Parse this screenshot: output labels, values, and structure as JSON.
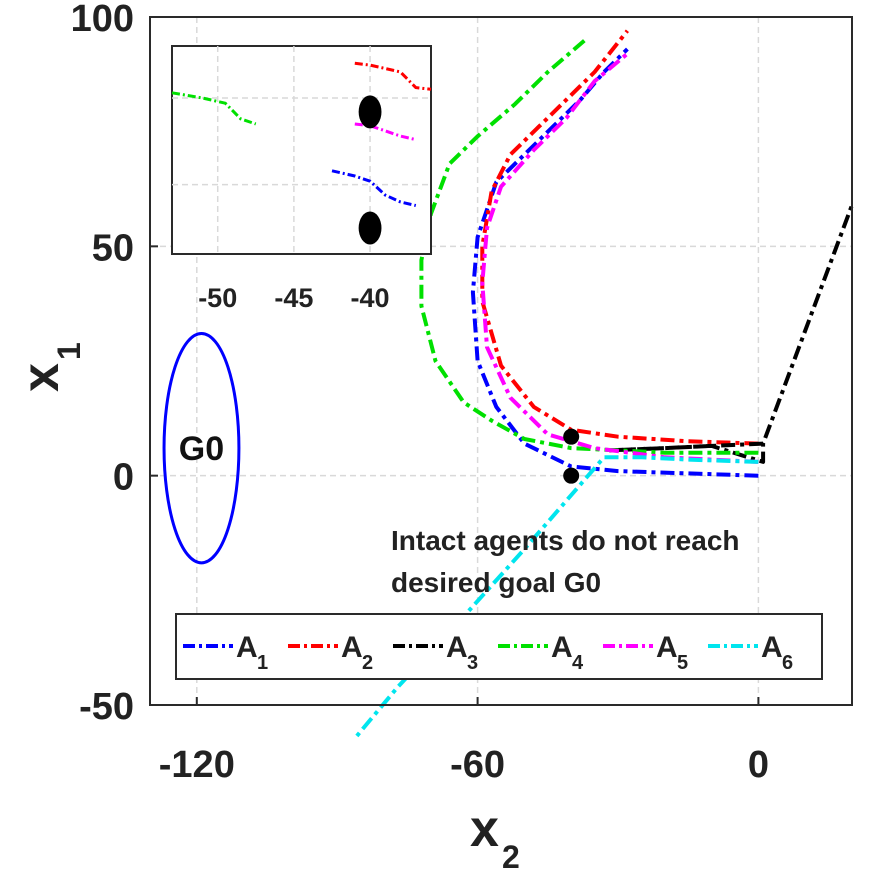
{
  "chart_data": {
    "type": "line",
    "title": "",
    "xlabel": "x",
    "xlabel_sub": "2",
    "ylabel": "x",
    "ylabel_sub": "1",
    "xlim": [
      -130,
      20
    ],
    "ylim": [
      -50,
      100
    ],
    "xticks": [
      -120,
      -60,
      0
    ],
    "yticks": [
      -50,
      0,
      50,
      100
    ],
    "xtick_labels": [
      "-120",
      "-60",
      "0"
    ],
    "ytick_labels": [
      "-50",
      "0",
      "50",
      "100"
    ],
    "grid": true,
    "legend_position": "bottom",
    "series": [
      {
        "name": "A",
        "sub": "1",
        "color": "#0000ff",
        "points": [
          [
            0,
            0
          ],
          [
            -15,
            0.5
          ],
          [
            -30,
            1
          ],
          [
            -40,
            2
          ],
          [
            -50,
            7
          ],
          [
            -56,
            15
          ],
          [
            -60,
            25
          ],
          [
            -61,
            40
          ],
          [
            -60,
            52
          ],
          [
            -56,
            64
          ],
          [
            -50,
            70
          ],
          [
            -44,
            76
          ],
          [
            -38,
            82
          ],
          [
            -33,
            88
          ],
          [
            -28,
            93
          ]
        ]
      },
      {
        "name": "A",
        "sub": "2",
        "color": "#ff0000",
        "points": [
          [
            0,
            7
          ],
          [
            -15,
            7.5
          ],
          [
            -30,
            8.5
          ],
          [
            -40,
            10
          ],
          [
            -48,
            15
          ],
          [
            -55,
            24
          ],
          [
            -59,
            38
          ],
          [
            -59,
            50
          ],
          [
            -57,
            62
          ],
          [
            -53,
            70
          ],
          [
            -47,
            76
          ],
          [
            -41,
            82
          ],
          [
            -35,
            88
          ],
          [
            -28,
            97
          ]
        ]
      },
      {
        "name": "A",
        "sub": "3",
        "color": "#000000",
        "points": [
          [
            1,
            7
          ],
          [
            -10,
            6.5
          ],
          [
            -20,
            6
          ],
          [
            -32,
            5.5
          ],
          [
            -20,
            6
          ],
          [
            -10,
            6.5
          ],
          [
            1,
            3
          ],
          [
            1,
            7
          ],
          [
            20,
            59
          ]
        ]
      },
      {
        "name": "A",
        "sub": "4",
        "color": "#00e000",
        "points": [
          [
            0,
            5
          ],
          [
            -20,
            5
          ],
          [
            -40,
            6
          ],
          [
            -50,
            8
          ],
          [
            -57,
            12
          ],
          [
            -63,
            16
          ],
          [
            -69,
            25
          ],
          [
            -72,
            37
          ],
          [
            -72,
            47
          ],
          [
            -70,
            57
          ],
          [
            -66,
            68
          ],
          [
            -60,
            74
          ],
          [
            -52,
            81
          ],
          [
            -45,
            88
          ],
          [
            -37,
            95
          ]
        ]
      },
      {
        "name": "A",
        "sub": "5",
        "color": "#ff00ff",
        "points": [
          [
            0,
            3
          ],
          [
            -20,
            4
          ],
          [
            -35,
            6
          ],
          [
            -45,
            9
          ],
          [
            -53,
            17
          ],
          [
            -58,
            28
          ],
          [
            -59,
            42
          ],
          [
            -58,
            54
          ],
          [
            -55,
            63
          ],
          [
            -48,
            71
          ],
          [
            -41,
            78
          ],
          [
            -35,
            86
          ],
          [
            -28,
            92
          ]
        ]
      },
      {
        "name": "A",
        "sub": "6",
        "color": "#00e5ee",
        "points": [
          [
            0,
            3
          ],
          [
            -15,
            3.5
          ],
          [
            -25,
            4
          ],
          [
            -33,
            4
          ],
          [
            -50,
            -16
          ],
          [
            -65,
            -33
          ],
          [
            -77,
            -46
          ],
          [
            -86,
            -57
          ]
        ]
      }
    ],
    "markers": [
      {
        "label": "",
        "x": -40,
        "y": 8.5
      },
      {
        "label": "",
        "x": -40,
        "y": 0
      }
    ],
    "goal": {
      "label": "G0",
      "cx": -119,
      "cy": 6,
      "rx": 8,
      "ry": 25,
      "color": "#0000ff"
    },
    "annotation": [
      "Intact agents do not reach",
      "desired goal G0"
    ],
    "inset": {
      "xlim": [
        -53,
        -36
      ],
      "ylim": [
        -4,
        8
      ],
      "xticks": [
        -50,
        -45,
        -40
      ],
      "xtick_labels": [
        "-50",
        "-45",
        "-40"
      ],
      "yticks": [
        0,
        5
      ],
      "series": [
        {
          "color": "#00e000",
          "points": [
            [
              -53,
              5.3
            ],
            [
              -51,
              5.0
            ],
            [
              -49.5,
              4.7
            ],
            [
              -48.5,
              3.8
            ],
            [
              -47.5,
              3.5
            ]
          ]
        },
        {
          "color": "#ff0000",
          "points": [
            [
              -41,
              7
            ],
            [
              -40,
              6.9
            ],
            [
              -39,
              6.7
            ],
            [
              -38,
              6.5
            ],
            [
              -37,
              5.6
            ],
            [
              -36,
              5.5
            ]
          ]
        },
        {
          "color": "#ff00ff",
          "points": [
            [
              -41,
              3.5
            ],
            [
              -40,
              3.4
            ],
            [
              -39,
              3.1
            ],
            [
              -38,
              2.8
            ],
            [
              -37,
              2.6
            ]
          ]
        },
        {
          "color": "#0000ff",
          "points": [
            [
              -42.5,
              0.8
            ],
            [
              -41,
              0.5
            ],
            [
              -40,
              0.2
            ],
            [
              -39,
              -0.6
            ],
            [
              -38,
              -1.0
            ],
            [
              -37,
              -1.2
            ]
          ]
        }
      ],
      "markers": [
        {
          "x": -40,
          "y": 4.2,
          "r": 1.0
        },
        {
          "x": -40,
          "y": -2.5,
          "r": 1.0
        }
      ]
    }
  }
}
